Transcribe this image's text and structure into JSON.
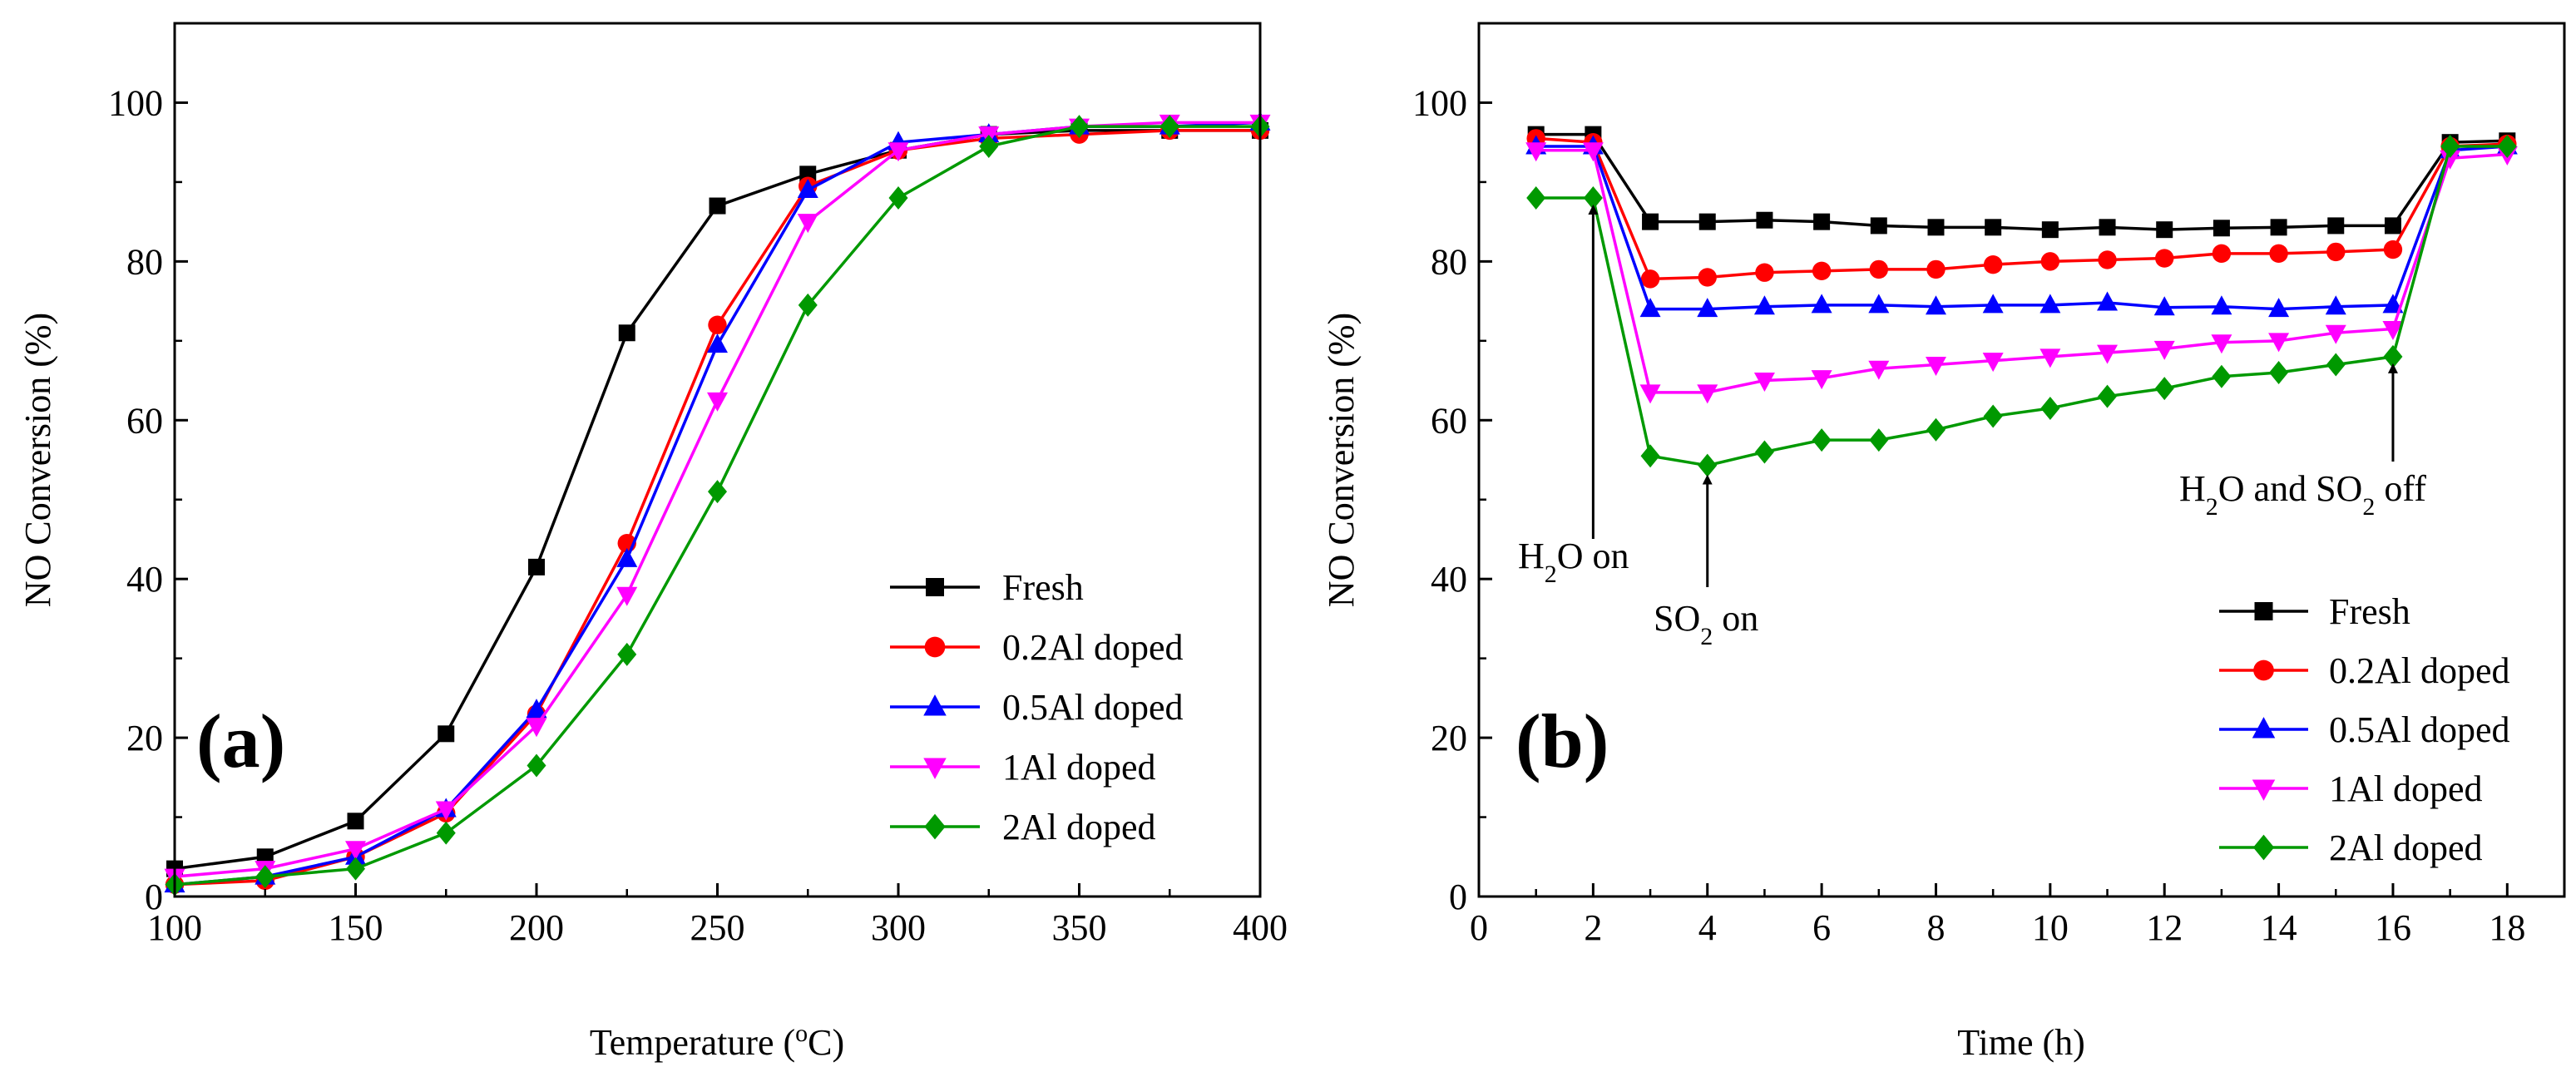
{
  "chart_data": [
    {
      "type": "line",
      "panel_label": "(a)",
      "xlabel": "Temperature (°C)",
      "ylabel": "NO Conversion (%)",
      "xlim": [
        100,
        400
      ],
      "ylim": [
        0,
        110
      ],
      "xticks": [
        100,
        150,
        200,
        250,
        300,
        350,
        400
      ],
      "yticks": [
        0,
        20,
        40,
        60,
        80,
        100
      ],
      "legend_position": "bottom-right",
      "x": [
        100,
        125,
        150,
        175,
        200,
        225,
        250,
        275,
        300,
        325,
        350,
        375,
        400
      ],
      "series": [
        {
          "name": "Fresh",
          "color": "#000000",
          "marker": "square",
          "values": [
            3.5,
            5.0,
            9.5,
            20.5,
            41.5,
            71.0,
            87.0,
            91.0,
            94.0,
            96.0,
            96.5,
            96.5,
            96.5
          ]
        },
        {
          "name": "0.2Al doped",
          "color": "#ff0000",
          "marker": "circle",
          "values": [
            1.5,
            2.0,
            5.0,
            10.5,
            23.0,
            44.5,
            72.0,
            89.5,
            94.0,
            95.5,
            96.0,
            96.5,
            96.5
          ]
        },
        {
          "name": "0.5Al doped",
          "color": "#0000ff",
          "marker": "triangle-up",
          "values": [
            1.5,
            2.5,
            5.0,
            11.0,
            23.5,
            42.5,
            69.5,
            89.0,
            95.0,
            96.0,
            97.0,
            97.0,
            97.5
          ]
        },
        {
          "name": "1Al doped",
          "color": "#ff00ff",
          "marker": "triangle-down",
          "values": [
            2.5,
            3.5,
            6.0,
            11.0,
            21.5,
            38.0,
            62.5,
            85.0,
            94.0,
            96.0,
            97.0,
            97.5,
            97.5
          ]
        },
        {
          "name": "2Al doped",
          "color": "#009900",
          "marker": "diamond",
          "values": [
            1.5,
            2.5,
            3.5,
            8.0,
            16.5,
            30.5,
            51.0,
            74.5,
            88.0,
            94.5,
            97.0,
            97.0,
            97.0
          ]
        }
      ]
    },
    {
      "type": "line",
      "panel_label": "(b)",
      "xlabel": "Time (h)",
      "ylabel": "NO Conversion (%)",
      "xlim": [
        0,
        19
      ],
      "ylim": [
        0,
        110
      ],
      "xticks": [
        0,
        2,
        4,
        6,
        8,
        10,
        12,
        14,
        16,
        18
      ],
      "yticks": [
        0,
        20,
        40,
        60,
        80,
        100
      ],
      "legend_position": "bottom-right",
      "x": [
        1,
        2,
        3,
        4,
        5,
        6,
        7,
        8,
        9,
        10,
        11,
        12,
        13,
        14,
        15,
        16,
        17,
        18
      ],
      "series": [
        {
          "name": "Fresh",
          "color": "#000000",
          "marker": "square",
          "values": [
            96.0,
            96.0,
            85.0,
            85.0,
            85.2,
            85.0,
            84.5,
            84.3,
            84.3,
            84.0,
            84.3,
            84.0,
            84.2,
            84.3,
            84.5,
            84.5,
            95.0,
            95.2
          ]
        },
        {
          "name": "0.2Al doped",
          "color": "#ff0000",
          "marker": "circle",
          "values": [
            95.5,
            95.0,
            77.8,
            78.0,
            78.6,
            78.8,
            79.0,
            79.0,
            79.6,
            80.0,
            80.2,
            80.4,
            81.0,
            81.0,
            81.2,
            81.5,
            94.5,
            94.8
          ]
        },
        {
          "name": "0.5Al doped",
          "color": "#0000ff",
          "marker": "triangle-up",
          "values": [
            94.5,
            94.5,
            74.0,
            74.0,
            74.3,
            74.5,
            74.5,
            74.3,
            74.5,
            74.5,
            74.8,
            74.2,
            74.3,
            74.0,
            74.3,
            74.5,
            94.0,
            94.5
          ]
        },
        {
          "name": "1Al doped",
          "color": "#ff00ff",
          "marker": "triangle-down",
          "values": [
            94.0,
            94.0,
            63.5,
            63.5,
            65.0,
            65.3,
            66.5,
            67.0,
            67.5,
            68.0,
            68.5,
            69.0,
            69.8,
            70.0,
            71.0,
            71.5,
            93.0,
            93.5
          ]
        },
        {
          "name": "2Al doped",
          "color": "#009900",
          "marker": "diamond",
          "values": [
            88.0,
            88.0,
            55.5,
            54.3,
            56.0,
            57.5,
            57.5,
            58.8,
            60.5,
            61.5,
            63.0,
            64.0,
            65.5,
            66.0,
            67.0,
            68.0,
            94.5,
            94.5
          ]
        }
      ],
      "annotations": [
        {
          "text": "H2O on",
          "main": "H",
          "sub": "2",
          "rest": "O on",
          "x": 2,
          "y": 88
        },
        {
          "text": "SO2 on",
          "main": "SO",
          "sub": "2",
          "rest": " on",
          "x": 4,
          "y": 54
        },
        {
          "text": "H2O and SO2 off",
          "main": "H",
          "sub": "2",
          "mid": "O and SO",
          "sub2": "2",
          "rest": " off",
          "x": 16,
          "y": 68
        }
      ]
    }
  ]
}
